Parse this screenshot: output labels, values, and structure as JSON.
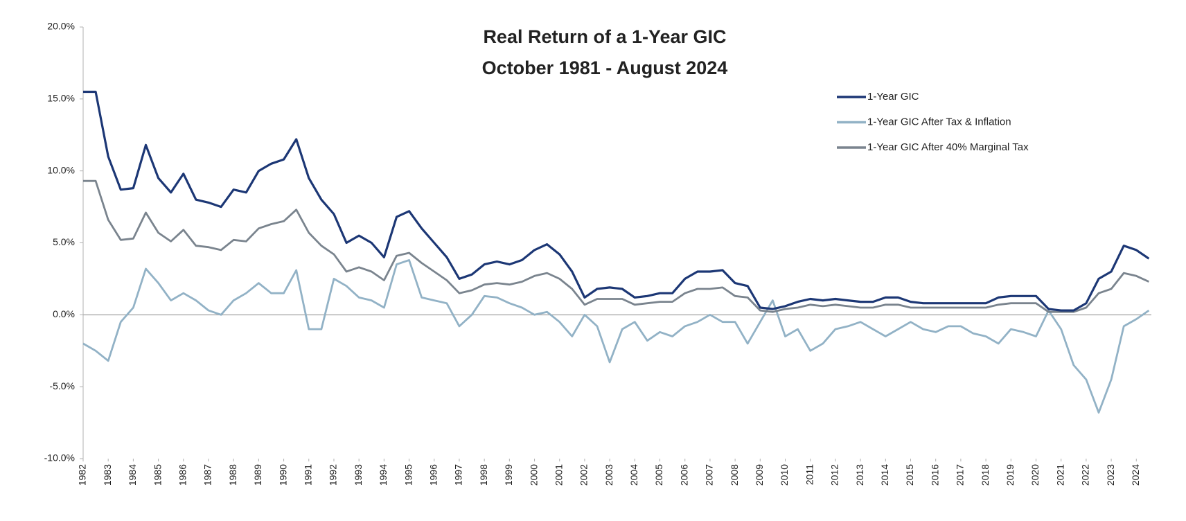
{
  "chart_data": {
    "type": "line",
    "title": "Real Return of a 1-Year GIC",
    "subtitle": "October 1981 - August 2024",
    "x": [
      1982,
      1982.5,
      1983,
      1983.5,
      1984,
      1984.5,
      1985,
      1985.5,
      1986,
      1986.5,
      1987,
      1987.5,
      1988,
      1988.5,
      1989,
      1989.5,
      1990,
      1990.5,
      1991,
      1991.5,
      1992,
      1992.5,
      1993,
      1993.5,
      1994,
      1994.5,
      1995,
      1995.5,
      1996,
      1996.5,
      1997,
      1997.5,
      1998,
      1998.5,
      1999,
      1999.5,
      2000,
      2000.5,
      2001,
      2001.5,
      2002,
      2002.5,
      2003,
      2003.5,
      2004,
      2004.5,
      2005,
      2005.5,
      2006,
      2006.5,
      2007,
      2007.5,
      2008,
      2008.5,
      2009,
      2009.5,
      2010,
      2010.5,
      2011,
      2011.5,
      2012,
      2012.5,
      2013,
      2013.5,
      2014,
      2014.5,
      2015,
      2015.5,
      2016,
      2016.5,
      2017,
      2017.5,
      2018,
      2018.5,
      2019,
      2019.5,
      2020,
      2020.5,
      2021,
      2021.5,
      2022,
      2022.5,
      2023,
      2023.5,
      2024,
      2024.5
    ],
    "series": [
      {
        "name": "1-Year GIC",
        "color": "#1c3775",
        "values": [
          15.5,
          15.5,
          11,
          8.7,
          8.8,
          11.8,
          9.5,
          8.5,
          9.8,
          8.0,
          7.8,
          7.5,
          8.7,
          8.5,
          10,
          10.5,
          10.8,
          12.2,
          9.5,
          8.0,
          7.0,
          5.0,
          5.5,
          5.0,
          4.0,
          6.8,
          7.2,
          6.0,
          5.0,
          4.0,
          2.5,
          2.8,
          3.5,
          3.7,
          3.5,
          3.8,
          4.5,
          4.9,
          4.2,
          3.0,
          1.2,
          1.8,
          1.9,
          1.8,
          1.2,
          1.3,
          1.5,
          1.5,
          2.5,
          3.0,
          3.0,
          3.1,
          2.2,
          2.0,
          0.5,
          0.4,
          0.6,
          0.9,
          1.1,
          1.0,
          1.1,
          1.0,
          0.9,
          0.9,
          1.2,
          1.2,
          0.9,
          0.8,
          0.8,
          0.8,
          0.8,
          0.8,
          0.8,
          1.2,
          1.3,
          1.3,
          1.3,
          0.4,
          0.3,
          0.3,
          0.8,
          2.5,
          3.0,
          4.8,
          4.5,
          3.9
        ]
      },
      {
        "name": "1-Year GIC After Tax & Inflation",
        "color": "#92b2c6",
        "values": [
          -2.0,
          -2.5,
          -3.2,
          -0.5,
          0.5,
          3.2,
          2.2,
          1.0,
          1.5,
          1.0,
          0.3,
          0.0,
          1.0,
          1.5,
          2.2,
          1.5,
          1.5,
          3.1,
          -1.0,
          -1.0,
          2.5,
          2.0,
          1.2,
          1.0,
          0.5,
          3.5,
          3.8,
          1.2,
          1.0,
          0.8,
          -0.8,
          0.0,
          1.3,
          1.2,
          0.8,
          0.5,
          0.0,
          0.2,
          -0.5,
          -1.5,
          0.0,
          -0.8,
          -3.3,
          -1.0,
          -0.5,
          -1.8,
          -1.2,
          -1.5,
          -0.8,
          -0.5,
          0.0,
          -0.5,
          -0.5,
          -2.0,
          -0.5,
          1.0,
          -1.5,
          -1.0,
          -2.5,
          -2.0,
          -1.0,
          -0.8,
          -0.5,
          -1.0,
          -1.5,
          -1.0,
          -0.5,
          -1.0,
          -1.2,
          -0.8,
          -0.8,
          -1.3,
          -1.5,
          -2.0,
          -1.0,
          -1.2,
          -1.5,
          0.3,
          -1.0,
          -3.5,
          -4.5,
          -6.8,
          -4.5,
          -0.8,
          -0.3,
          0.3
        ]
      },
      {
        "name": "1-Year GIC After 40% Marginal Tax",
        "color": "#7a848e",
        "values": [
          9.3,
          9.3,
          6.6,
          5.2,
          5.3,
          7.1,
          5.7,
          5.1,
          5.9,
          4.8,
          4.7,
          4.5,
          5.2,
          5.1,
          6.0,
          6.3,
          6.5,
          7.3,
          5.7,
          4.8,
          4.2,
          3.0,
          3.3,
          3.0,
          2.4,
          4.1,
          4.3,
          3.6,
          3.0,
          2.4,
          1.5,
          1.7,
          2.1,
          2.2,
          2.1,
          2.3,
          2.7,
          2.9,
          2.5,
          1.8,
          0.7,
          1.1,
          1.1,
          1.1,
          0.7,
          0.8,
          0.9,
          0.9,
          1.5,
          1.8,
          1.8,
          1.9,
          1.3,
          1.2,
          0.3,
          0.2,
          0.4,
          0.5,
          0.7,
          0.6,
          0.7,
          0.6,
          0.5,
          0.5,
          0.7,
          0.7,
          0.5,
          0.5,
          0.5,
          0.5,
          0.5,
          0.5,
          0.5,
          0.7,
          0.8,
          0.8,
          0.8,
          0.2,
          0.2,
          0.2,
          0.5,
          1.5,
          1.8,
          2.9,
          2.7,
          2.3
        ]
      }
    ],
    "xlim": [
      1982,
      2024.6
    ],
    "xticks": [
      1982,
      1983,
      1984,
      1985,
      1986,
      1987,
      1988,
      1989,
      1990,
      1991,
      1992,
      1993,
      1994,
      1995,
      1996,
      1997,
      1998,
      1999,
      2000,
      2001,
      2002,
      2003,
      2004,
      2005,
      2006,
      2007,
      2008,
      2009,
      2010,
      2011,
      2012,
      2013,
      2014,
      2015,
      2016,
      2017,
      2018,
      2019,
      2020,
      2021,
      2022,
      2023,
      2024
    ],
    "ylim": [
      -10,
      20
    ],
    "yticks": [
      {
        "value": -10,
        "label": "-10.0%"
      },
      {
        "value": -5,
        "label": "-5.0%"
      },
      {
        "value": 0,
        "label": "0.0%"
      },
      {
        "value": 5,
        "label": "5.0%"
      },
      {
        "value": 10,
        "label": "10.0%"
      },
      {
        "value": 15,
        "label": "15.0%"
      },
      {
        "value": 20,
        "label": "20.0%"
      }
    ],
    "grid": false,
    "legend": "upper right"
  }
}
